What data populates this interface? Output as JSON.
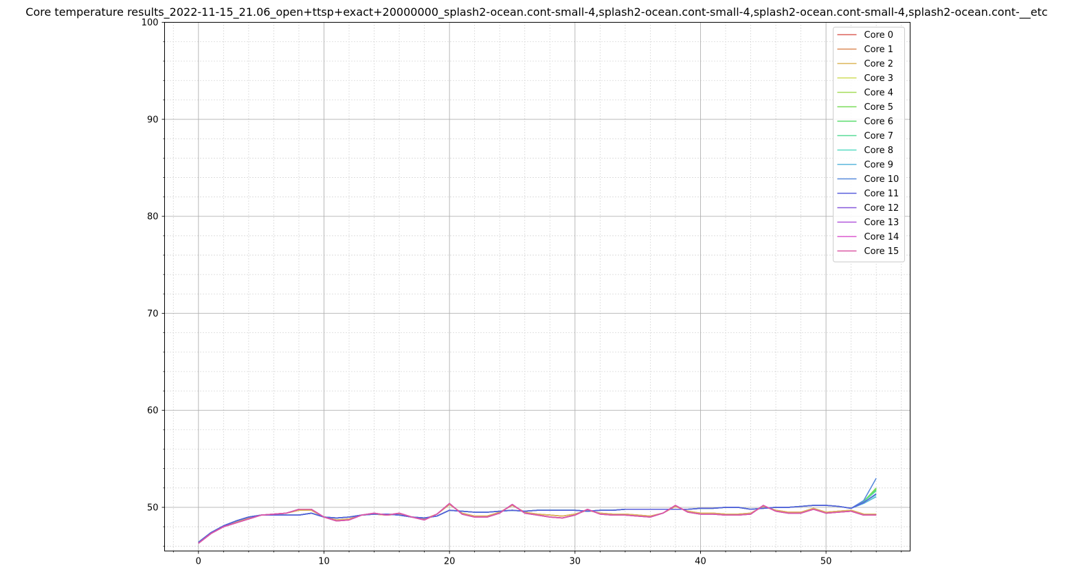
{
  "chart_data": {
    "type": "line",
    "title": "Core temperature results_2022-11-15_21.06_open+ttsp+exact+20000000_splash2-ocean.cont-small-4,splash2-ocean.cont-small-4,splash2-ocean.cont-small-4,splash2-ocean.cont-__etc",
    "xlabel": "",
    "ylabel": "",
    "xlim": [
      -2.7,
      56.7
    ],
    "ylim": [
      45.5,
      100
    ],
    "x_major_ticks": [
      0,
      10,
      20,
      30,
      40,
      50
    ],
    "y_major_ticks": [
      50,
      60,
      70,
      80,
      90,
      100
    ],
    "x_minor_step": 2,
    "y_minor_step": 2,
    "grid": true,
    "legend_position": "top-right",
    "x": [
      0,
      1,
      2,
      3,
      4,
      5,
      6,
      7,
      8,
      9,
      10,
      11,
      12,
      13,
      14,
      15,
      16,
      17,
      18,
      19,
      20,
      21,
      22,
      23,
      24,
      25,
      26,
      27,
      28,
      29,
      30,
      31,
      32,
      33,
      34,
      35,
      36,
      37,
      38,
      39,
      40,
      41,
      42,
      43,
      44,
      45,
      46,
      47,
      48,
      49,
      50,
      51,
      52,
      53,
      54
    ],
    "series": [
      {
        "name": "Core 0",
        "color": "#db5f57",
        "values": [
          46.3,
          47.3,
          48.0,
          48.5,
          48.9,
          49.2,
          49.3,
          49.4,
          49.7,
          49.7,
          49.0,
          48.7,
          48.8,
          49.2,
          49.3,
          49.2,
          49.3,
          49.0,
          48.8,
          49.3,
          50.3,
          49.4,
          49.1,
          49.1,
          49.5,
          50.2,
          49.5,
          49.3,
          49.2,
          49.1,
          49.3,
          49.7,
          49.4,
          49.3,
          49.3,
          49.2,
          49.1,
          49.4,
          50.1,
          49.6,
          49.4,
          49.4,
          49.3,
          49.3,
          49.4,
          50.1,
          49.7,
          49.5,
          49.5,
          49.9,
          49.5,
          49.6,
          49.7,
          49.3,
          49.3
        ]
      },
      {
        "name": "Core 1",
        "color": "#db8957",
        "values": [
          46.3,
          47.3,
          48.0,
          48.5,
          48.9,
          49.2,
          49.3,
          49.4,
          49.7,
          49.7,
          49.0,
          48.7,
          48.8,
          49.2,
          49.3,
          49.2,
          49.3,
          49.0,
          48.8,
          49.3,
          50.3,
          49.4,
          49.1,
          49.1,
          49.5,
          50.2,
          49.5,
          49.3,
          49.2,
          49.1,
          49.3,
          49.7,
          49.4,
          49.3,
          49.3,
          49.2,
          49.1,
          49.4,
          50.1,
          49.6,
          49.4,
          49.4,
          49.3,
          49.3,
          49.4,
          50.1,
          49.7,
          49.5,
          49.5,
          49.9,
          49.5,
          49.6,
          49.7,
          49.3,
          49.3
        ]
      },
      {
        "name": "Core 2",
        "color": "#dbb557",
        "values": [
          46.3,
          47.3,
          48.0,
          48.5,
          48.9,
          49.2,
          49.3,
          49.4,
          49.7,
          49.7,
          49.0,
          48.7,
          48.8,
          49.2,
          49.3,
          49.2,
          49.3,
          49.0,
          48.8,
          49.3,
          50.3,
          49.4,
          49.1,
          49.1,
          49.5,
          50.2,
          49.5,
          49.3,
          49.2,
          49.1,
          49.3,
          49.7,
          49.4,
          49.3,
          49.3,
          49.2,
          49.1,
          49.4,
          50.1,
          49.6,
          49.4,
          49.4,
          49.3,
          49.3,
          49.4,
          50.1,
          49.7,
          49.5,
          49.5,
          49.9,
          49.5,
          49.6,
          49.7,
          49.3,
          49.3
        ]
      },
      {
        "name": "Core 3",
        "color": "#cfdb57",
        "values": [
          46.4,
          47.4,
          48.1,
          48.6,
          49.0,
          49.2,
          49.2,
          49.2,
          49.2,
          49.4,
          49.0,
          48.9,
          49.0,
          49.2,
          49.3,
          49.3,
          49.2,
          49.0,
          48.9,
          49.1,
          49.7,
          49.6,
          49.5,
          49.5,
          49.6,
          49.7,
          49.6,
          49.7,
          49.7,
          49.7,
          49.7,
          49.6,
          49.7,
          49.7,
          49.8,
          49.8,
          49.8,
          49.8,
          49.8,
          49.8,
          49.9,
          49.9,
          50.0,
          50.0,
          49.8,
          49.9,
          50.0,
          50.0,
          50.1,
          50.2,
          50.2,
          50.1,
          49.9,
          50.6,
          51.9
        ]
      },
      {
        "name": "Core 4",
        "color": "#a3db57",
        "values": [
          46.4,
          47.4,
          48.1,
          48.6,
          49.0,
          49.2,
          49.2,
          49.2,
          49.2,
          49.4,
          49.0,
          48.9,
          49.0,
          49.2,
          49.3,
          49.3,
          49.2,
          49.0,
          48.9,
          49.1,
          49.7,
          49.6,
          49.5,
          49.5,
          49.6,
          49.7,
          49.6,
          49.7,
          49.7,
          49.7,
          49.7,
          49.6,
          49.7,
          49.7,
          49.8,
          49.8,
          49.8,
          49.8,
          49.8,
          49.8,
          49.9,
          49.9,
          50.0,
          50.0,
          49.8,
          49.9,
          50.0,
          50.0,
          50.1,
          50.2,
          50.2,
          50.1,
          49.9,
          50.6,
          51.9
        ]
      },
      {
        "name": "Core 5",
        "color": "#78db57",
        "values": [
          46.4,
          47.4,
          48.1,
          48.6,
          49.0,
          49.2,
          49.2,
          49.2,
          49.2,
          49.4,
          49.0,
          48.9,
          49.0,
          49.2,
          49.3,
          49.3,
          49.2,
          49.0,
          48.9,
          49.1,
          49.7,
          49.6,
          49.5,
          49.5,
          49.6,
          49.7,
          49.6,
          49.7,
          49.7,
          49.7,
          49.7,
          49.6,
          49.7,
          49.7,
          49.8,
          49.8,
          49.8,
          49.8,
          49.8,
          49.8,
          49.9,
          49.9,
          50.0,
          50.0,
          49.8,
          49.9,
          50.0,
          50.0,
          50.1,
          50.2,
          50.2,
          50.1,
          49.9,
          50.6,
          52.0
        ]
      },
      {
        "name": "Core 6",
        "color": "#57db6a",
        "values": [
          46.4,
          47.4,
          48.1,
          48.6,
          49.0,
          49.2,
          49.2,
          49.2,
          49.2,
          49.4,
          49.0,
          48.9,
          49.0,
          49.2,
          49.3,
          49.3,
          49.2,
          49.0,
          48.9,
          49.1,
          49.7,
          49.6,
          49.5,
          49.5,
          49.6,
          49.7,
          49.6,
          49.7,
          49.7,
          49.7,
          49.7,
          49.6,
          49.7,
          49.7,
          49.8,
          49.8,
          49.8,
          49.8,
          49.8,
          49.8,
          49.9,
          49.9,
          50.0,
          50.0,
          49.8,
          49.9,
          50.0,
          50.0,
          50.1,
          50.2,
          50.2,
          50.1,
          49.9,
          50.6,
          51.8
        ]
      },
      {
        "name": "Core 7",
        "color": "#57db96",
        "values": [
          46.4,
          47.4,
          48.1,
          48.6,
          49.0,
          49.2,
          49.2,
          49.2,
          49.2,
          49.4,
          49.0,
          48.9,
          49.0,
          49.2,
          49.3,
          49.3,
          49.2,
          49.0,
          48.9,
          49.1,
          49.7,
          49.6,
          49.5,
          49.5,
          49.6,
          49.7,
          49.6,
          49.7,
          49.7,
          49.7,
          49.7,
          49.6,
          49.7,
          49.7,
          49.8,
          49.8,
          49.8,
          49.8,
          49.8,
          49.8,
          49.9,
          49.9,
          50.0,
          50.0,
          49.8,
          49.9,
          50.0,
          50.0,
          50.1,
          50.2,
          50.2,
          50.1,
          49.9,
          50.6,
          51.7
        ]
      },
      {
        "name": "Core 8",
        "color": "#57dbc2",
        "values": [
          46.4,
          47.4,
          48.1,
          48.6,
          49.0,
          49.2,
          49.2,
          49.2,
          49.2,
          49.4,
          49.0,
          48.9,
          49.0,
          49.2,
          49.3,
          49.3,
          49.2,
          49.0,
          48.9,
          49.1,
          49.7,
          49.6,
          49.5,
          49.5,
          49.6,
          49.7,
          49.6,
          49.7,
          49.7,
          49.7,
          49.7,
          49.6,
          49.7,
          49.7,
          49.8,
          49.8,
          49.8,
          49.8,
          49.8,
          49.8,
          49.9,
          49.9,
          50.0,
          50.0,
          49.8,
          49.9,
          50.0,
          50.0,
          50.1,
          50.2,
          50.2,
          50.1,
          49.9,
          50.5,
          51.3
        ]
      },
      {
        "name": "Core 9",
        "color": "#57b5db",
        "values": [
          46.4,
          47.4,
          48.1,
          48.6,
          49.0,
          49.2,
          49.2,
          49.2,
          49.2,
          49.4,
          49.0,
          48.9,
          49.0,
          49.2,
          49.3,
          49.3,
          49.2,
          49.0,
          48.9,
          49.1,
          49.7,
          49.6,
          49.5,
          49.5,
          49.6,
          49.7,
          49.6,
          49.7,
          49.7,
          49.7,
          49.7,
          49.6,
          49.7,
          49.7,
          49.8,
          49.8,
          49.8,
          49.8,
          49.8,
          49.8,
          49.9,
          49.9,
          50.0,
          50.0,
          49.8,
          49.9,
          50.0,
          50.0,
          50.1,
          50.2,
          50.2,
          50.1,
          49.9,
          50.4,
          51.1
        ]
      },
      {
        "name": "Core 10",
        "color": "#5789db",
        "values": [
          46.4,
          47.4,
          48.1,
          48.6,
          49.0,
          49.2,
          49.2,
          49.2,
          49.2,
          49.4,
          49.0,
          48.9,
          49.0,
          49.2,
          49.3,
          49.3,
          49.2,
          49.0,
          48.9,
          49.1,
          49.7,
          49.6,
          49.5,
          49.5,
          49.6,
          49.7,
          49.6,
          49.7,
          49.7,
          49.7,
          49.7,
          49.6,
          49.7,
          49.7,
          49.8,
          49.8,
          49.8,
          49.8,
          49.8,
          49.8,
          49.9,
          49.9,
          50.0,
          50.0,
          49.8,
          49.9,
          50.0,
          50.0,
          50.1,
          50.2,
          50.2,
          50.1,
          49.9,
          50.7,
          53.0
        ]
      },
      {
        "name": "Core 11",
        "color": "#575cdb",
        "values": [
          46.4,
          47.4,
          48.1,
          48.6,
          49.0,
          49.2,
          49.2,
          49.2,
          49.2,
          49.4,
          49.0,
          48.9,
          49.0,
          49.2,
          49.3,
          49.3,
          49.2,
          49.0,
          48.9,
          49.1,
          49.7,
          49.6,
          49.5,
          49.5,
          49.6,
          49.7,
          49.6,
          49.7,
          49.7,
          49.7,
          49.7,
          49.6,
          49.7,
          49.7,
          49.8,
          49.8,
          49.8,
          49.8,
          49.8,
          49.8,
          49.9,
          49.9,
          50.0,
          50.0,
          49.8,
          49.9,
          50.0,
          50.0,
          50.1,
          50.2,
          50.2,
          50.1,
          49.9,
          50.5,
          51.4
        ]
      },
      {
        "name": "Core 12",
        "color": "#8557db",
        "values": [
          46.3,
          47.3,
          48.0,
          48.4,
          48.8,
          49.2,
          49.3,
          49.4,
          49.8,
          49.8,
          49.0,
          48.6,
          48.7,
          49.2,
          49.4,
          49.2,
          49.4,
          49.0,
          48.7,
          49.3,
          50.4,
          49.3,
          49.0,
          49.0,
          49.4,
          50.3,
          49.4,
          49.2,
          49.0,
          48.9,
          49.2,
          49.8,
          49.3,
          49.2,
          49.2,
          49.1,
          49.0,
          49.4,
          50.2,
          49.5,
          49.3,
          49.3,
          49.2,
          49.2,
          49.3,
          50.2,
          49.6,
          49.4,
          49.4,
          49.8,
          49.4,
          49.5,
          49.6,
          49.2,
          49.2
        ]
      },
      {
        "name": "Core 13",
        "color": "#b157db",
        "values": [
          46.3,
          47.3,
          48.0,
          48.4,
          48.8,
          49.2,
          49.3,
          49.4,
          49.8,
          49.8,
          49.0,
          48.6,
          48.7,
          49.2,
          49.4,
          49.2,
          49.4,
          49.0,
          48.7,
          49.3,
          50.4,
          49.3,
          49.0,
          49.0,
          49.4,
          50.3,
          49.4,
          49.2,
          49.0,
          48.9,
          49.2,
          49.8,
          49.3,
          49.2,
          49.2,
          49.1,
          49.0,
          49.4,
          50.2,
          49.5,
          49.3,
          49.3,
          49.2,
          49.2,
          49.3,
          50.2,
          49.6,
          49.4,
          49.4,
          49.8,
          49.4,
          49.5,
          49.6,
          49.2,
          49.2
        ]
      },
      {
        "name": "Core 14",
        "color": "#db57cf",
        "values": [
          46.3,
          47.3,
          48.0,
          48.4,
          48.8,
          49.2,
          49.3,
          49.4,
          49.8,
          49.8,
          49.0,
          48.6,
          48.7,
          49.2,
          49.4,
          49.2,
          49.4,
          49.0,
          48.7,
          49.3,
          50.4,
          49.3,
          49.0,
          49.0,
          49.4,
          50.3,
          49.4,
          49.2,
          49.0,
          48.9,
          49.2,
          49.8,
          49.3,
          49.2,
          49.2,
          49.1,
          49.0,
          49.4,
          50.2,
          49.5,
          49.3,
          49.3,
          49.2,
          49.2,
          49.3,
          50.2,
          49.6,
          49.4,
          49.4,
          49.8,
          49.4,
          49.5,
          49.6,
          49.2,
          49.2
        ]
      },
      {
        "name": "Core 15",
        "color": "#db57a3",
        "values": [
          46.3,
          47.3,
          48.0,
          48.4,
          48.8,
          49.2,
          49.3,
          49.4,
          49.8,
          49.8,
          49.0,
          48.6,
          48.7,
          49.2,
          49.4,
          49.2,
          49.4,
          49.0,
          48.7,
          49.3,
          50.4,
          49.3,
          49.0,
          49.0,
          49.4,
          50.3,
          49.4,
          49.2,
          49.0,
          48.9,
          49.2,
          49.8,
          49.3,
          49.2,
          49.2,
          49.1,
          49.0,
          49.4,
          50.2,
          49.5,
          49.3,
          49.3,
          49.2,
          49.2,
          49.3,
          50.2,
          49.6,
          49.4,
          49.4,
          49.8,
          49.4,
          49.5,
          49.6,
          49.2,
          49.2
        ]
      }
    ]
  }
}
